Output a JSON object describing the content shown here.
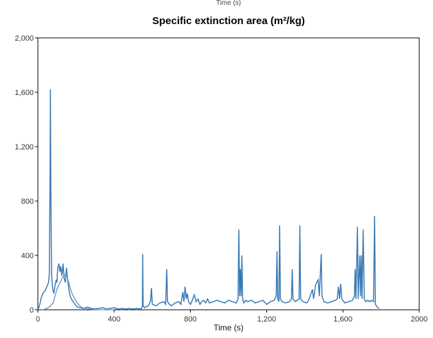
{
  "chart_data": {
    "type": "line",
    "title": "Specific extinction area (m²/kg)",
    "cropped_header": "Time (s)",
    "xlabel": "Time (s)",
    "ylabel": "",
    "xlim": [
      0,
      2000
    ],
    "ylim": [
      0,
      2000
    ],
    "x_ticks": [
      "0",
      "400",
      "800",
      "1,200",
      "1,600",
      "2000"
    ],
    "y_ticks": [
      "0",
      "400",
      "800",
      "1,200",
      "1,600",
      "2,000"
    ],
    "grid": false,
    "legend": "none",
    "series": [
      {
        "color": "#3a7ab5",
        "points": [
          [
            0,
            0
          ],
          [
            6,
            20
          ],
          [
            12,
            50
          ],
          [
            18,
            90
          ],
          [
            24,
            110
          ],
          [
            30,
            130
          ],
          [
            38,
            140
          ],
          [
            44,
            160
          ],
          [
            50,
            180
          ],
          [
            56,
            200
          ],
          [
            60,
            260
          ],
          [
            64,
            1000
          ],
          [
            66,
            1620
          ],
          [
            68,
            900
          ],
          [
            72,
            250
          ],
          [
            78,
            150
          ],
          [
            84,
            120
          ],
          [
            90,
            180
          ],
          [
            96,
            220
          ],
          [
            100,
            200
          ],
          [
            104,
            300
          ],
          [
            110,
            340
          ],
          [
            116,
            280
          ],
          [
            120,
            320
          ],
          [
            126,
            250
          ],
          [
            132,
            340
          ],
          [
            138,
            230
          ],
          [
            144,
            200
          ],
          [
            150,
            310
          ],
          [
            156,
            220
          ],
          [
            160,
            180
          ],
          [
            166,
            120
          ],
          [
            172,
            90
          ],
          [
            180,
            70
          ],
          [
            190,
            50
          ],
          [
            200,
            30
          ],
          [
            210,
            20
          ],
          [
            220,
            15
          ],
          [
            240,
            10
          ],
          [
            260,
            20
          ],
          [
            280,
            10
          ],
          [
            300,
            5
          ],
          [
            320,
            10
          ],
          [
            340,
            15
          ],
          [
            360,
            5
          ],
          [
            380,
            10
          ],
          [
            400,
            15
          ],
          [
            420,
            5
          ],
          [
            440,
            10
          ],
          [
            460,
            5
          ],
          [
            480,
            10
          ],
          [
            500,
            5
          ],
          [
            520,
            10
          ],
          [
            540,
            5
          ],
          [
            548,
            20
          ],
          [
            550,
            410
          ],
          [
            552,
            30
          ],
          [
            560,
            15
          ],
          [
            580,
            30
          ],
          [
            590,
            60
          ],
          [
            596,
            160
          ],
          [
            600,
            40
          ],
          [
            620,
            30
          ],
          [
            640,
            50
          ],
          [
            660,
            60
          ],
          [
            670,
            40
          ],
          [
            676,
            300
          ],
          [
            680,
            60
          ],
          [
            690,
            40
          ],
          [
            700,
            30
          ],
          [
            720,
            50
          ],
          [
            740,
            60
          ],
          [
            750,
            40
          ],
          [
            760,
            130
          ],
          [
            766,
            60
          ],
          [
            772,
            170
          ],
          [
            778,
            80
          ],
          [
            784,
            120
          ],
          [
            790,
            60
          ],
          [
            800,
            40
          ],
          [
            810,
            70
          ],
          [
            820,
            110
          ],
          [
            830,
            60
          ],
          [
            840,
            80
          ],
          [
            850,
            40
          ],
          [
            860,
            60
          ],
          [
            870,
            70
          ],
          [
            880,
            50
          ],
          [
            890,
            80
          ],
          [
            900,
            50
          ],
          [
            920,
            60
          ],
          [
            940,
            70
          ],
          [
            960,
            60
          ],
          [
            980,
            50
          ],
          [
            1000,
            70
          ],
          [
            1020,
            60
          ],
          [
            1040,
            50
          ],
          [
            1050,
            80
          ],
          [
            1054,
            590
          ],
          [
            1058,
            100
          ],
          [
            1062,
            300
          ],
          [
            1066,
            100
          ],
          [
            1070,
            400
          ],
          [
            1074,
            80
          ],
          [
            1080,
            50
          ],
          [
            1090,
            70
          ],
          [
            1100,
            60
          ],
          [
            1120,
            70
          ],
          [
            1140,
            50
          ],
          [
            1160,
            60
          ],
          [
            1180,
            70
          ],
          [
            1200,
            40
          ],
          [
            1220,
            60
          ],
          [
            1240,
            70
          ],
          [
            1250,
            100
          ],
          [
            1254,
            430
          ],
          [
            1258,
            80
          ],
          [
            1264,
            60
          ],
          [
            1268,
            620
          ],
          [
            1272,
            80
          ],
          [
            1280,
            60
          ],
          [
            1300,
            50
          ],
          [
            1320,
            60
          ],
          [
            1330,
            80
          ],
          [
            1334,
            300
          ],
          [
            1338,
            80
          ],
          [
            1350,
            60
          ],
          [
            1370,
            80
          ],
          [
            1374,
            620
          ],
          [
            1378,
            80
          ],
          [
            1390,
            60
          ],
          [
            1410,
            50
          ],
          [
            1420,
            70
          ],
          [
            1440,
            150
          ],
          [
            1446,
            80
          ],
          [
            1456,
            180
          ],
          [
            1462,
            200
          ],
          [
            1470,
            220
          ],
          [
            1476,
            100
          ],
          [
            1486,
            410
          ],
          [
            1490,
            100
          ],
          [
            1500,
            60
          ],
          [
            1520,
            50
          ],
          [
            1540,
            60
          ],
          [
            1560,
            70
          ],
          [
            1570,
            80
          ],
          [
            1576,
            170
          ],
          [
            1582,
            80
          ],
          [
            1588,
            190
          ],
          [
            1594,
            80
          ],
          [
            1610,
            50
          ],
          [
            1630,
            60
          ],
          [
            1650,
            70
          ],
          [
            1660,
            100
          ],
          [
            1664,
            300
          ],
          [
            1668,
            80
          ],
          [
            1676,
            610
          ],
          [
            1680,
            80
          ],
          [
            1688,
            400
          ],
          [
            1692,
            100
          ],
          [
            1696,
            400
          ],
          [
            1700,
            80
          ],
          [
            1706,
            590
          ],
          [
            1712,
            80
          ],
          [
            1720,
            60
          ],
          [
            1730,
            70
          ],
          [
            1740,
            60
          ],
          [
            1750,
            70
          ],
          [
            1760,
            60
          ],
          [
            1766,
            690
          ],
          [
            1770,
            40
          ],
          [
            1780,
            20
          ],
          [
            1790,
            10
          ]
        ]
      },
      {
        "color": "#5a93c6",
        "points": [
          [
            20,
            0
          ],
          [
            40,
            5
          ],
          [
            60,
            20
          ],
          [
            80,
            50
          ],
          [
            100,
            150
          ],
          [
            116,
            200
          ],
          [
            130,
            240
          ],
          [
            146,
            260
          ],
          [
            156,
            230
          ],
          [
            166,
            180
          ],
          [
            176,
            130
          ],
          [
            190,
            90
          ],
          [
            206,
            50
          ],
          [
            226,
            20
          ],
          [
            246,
            10
          ],
          [
            270,
            5
          ],
          [
            300,
            0
          ],
          [
            400,
            0
          ]
        ]
      }
    ]
  }
}
